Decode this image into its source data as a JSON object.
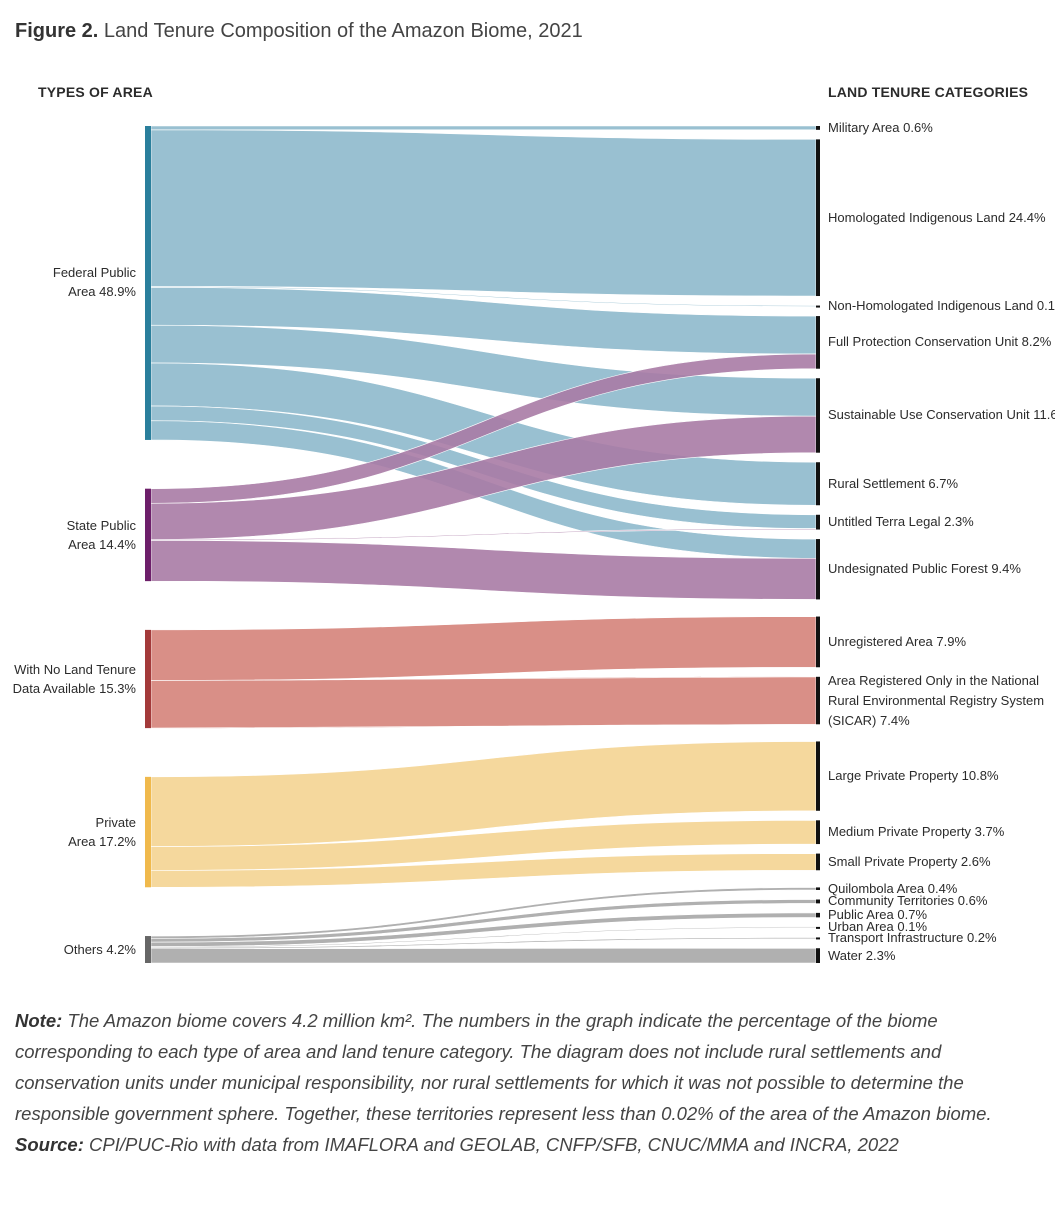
{
  "figure": {
    "number": "Figure 2.",
    "title": "Land Tenure Composition of the Amazon Biome, 2021"
  },
  "headers": {
    "left": "TYPES OF AREA",
    "right": "LAND TENURE CATEGORIES"
  },
  "chart_data": {
    "type": "sankey",
    "units": "%",
    "sources": [
      {
        "id": "federal",
        "lines": [
          "Federal Public",
          "Area 48.9%"
        ],
        "value": 48.9,
        "color": "#2a7f9c"
      },
      {
        "id": "state",
        "lines": [
          "State Public",
          "Area 14.4%"
        ],
        "value": 14.4,
        "color": "#6d1f6a"
      },
      {
        "id": "nodata",
        "lines": [
          "With No Land Tenure",
          "Data Available 15.3%"
        ],
        "value": 15.3,
        "color": "#a33a3a"
      },
      {
        "id": "private",
        "lines": [
          "Private",
          "Area 17.2%"
        ],
        "value": 17.2,
        "color": "#f0b94c"
      },
      {
        "id": "others",
        "lines": [
          "Others 4.2%"
        ],
        "value": 4.2,
        "color": "#666666"
      }
    ],
    "targets": [
      {
        "id": "military",
        "lines": [
          "Military Area 0.6%"
        ],
        "value": 0.6
      },
      {
        "id": "homologated",
        "lines": [
          "Homologated Indigenous Land 24.4%"
        ],
        "value": 24.4
      },
      {
        "id": "nonhomologated",
        "lines": [
          "Non-Homologated Indigenous Land 0.1%"
        ],
        "value": 0.1
      },
      {
        "id": "fullprotection",
        "lines": [
          "Full Protection Conservation Unit 8.2%"
        ],
        "value": 8.2
      },
      {
        "id": "sustainable",
        "lines": [
          "Sustainable Use Conservation Unit 11.6%"
        ],
        "value": 11.6
      },
      {
        "id": "rural",
        "lines": [
          "Rural Settlement 6.7%"
        ],
        "value": 6.7
      },
      {
        "id": "terralegal",
        "lines": [
          "Untitled Terra Legal 2.3%"
        ],
        "value": 2.3
      },
      {
        "id": "forest",
        "lines": [
          "Undesignated Public Forest 9.4%"
        ],
        "value": 9.4
      },
      {
        "id": "unregistered",
        "lines": [
          "Unregistered Area 7.9%"
        ],
        "value": 7.9
      },
      {
        "id": "sicar",
        "lines": [
          "Area Registered Only in the National",
          "Rural Environmental Registry System",
          "(SICAR) 7.4%"
        ],
        "value": 7.4
      },
      {
        "id": "large",
        "lines": [
          "Large Private Property 10.8%"
        ],
        "value": 10.8
      },
      {
        "id": "medium",
        "lines": [
          "Medium Private Property 3.7%"
        ],
        "value": 3.7
      },
      {
        "id": "small",
        "lines": [
          "Small Private Property 2.6%"
        ],
        "value": 2.6
      },
      {
        "id": "quilombola",
        "lines": [
          "Quilombola Area 0.4%"
        ],
        "value": 0.4
      },
      {
        "id": "community",
        "lines": [
          "Community Territories 0.6%"
        ],
        "value": 0.6
      },
      {
        "id": "publicarea",
        "lines": [
          "Public Area 0.7%"
        ],
        "value": 0.7
      },
      {
        "id": "urban",
        "lines": [
          "Urban Area 0.1%"
        ],
        "value": 0.1
      },
      {
        "id": "transport",
        "lines": [
          "Transport Infrastructure 0.2%"
        ],
        "value": 0.2
      },
      {
        "id": "water",
        "lines": [
          "Water 2.3%"
        ],
        "value": 2.3
      }
    ],
    "flows": [
      {
        "source": "federal",
        "target": "military",
        "value": 0.6
      },
      {
        "source": "federal",
        "target": "homologated",
        "value": 24.4
      },
      {
        "source": "federal",
        "target": "nonhomologated",
        "value": 0.1
      },
      {
        "source": "federal",
        "target": "fullprotection",
        "value": 5.9
      },
      {
        "source": "federal",
        "target": "sustainable",
        "value": 5.9
      },
      {
        "source": "federal",
        "target": "rural",
        "value": 6.7
      },
      {
        "source": "federal",
        "target": "terralegal",
        "value": 2.3
      },
      {
        "source": "federal",
        "target": "forest",
        "value": 3.0
      },
      {
        "source": "state",
        "target": "fullprotection",
        "value": 2.3
      },
      {
        "source": "state",
        "target": "sustainable",
        "value": 5.7
      },
      {
        "source": "state",
        "target": "terralegal",
        "value": 0.05
      },
      {
        "source": "state",
        "target": "forest",
        "value": 6.4
      },
      {
        "source": "nodata",
        "target": "unregistered",
        "value": 7.9
      },
      {
        "source": "nodata",
        "target": "sicar",
        "value": 7.4
      },
      {
        "source": "private",
        "target": "large",
        "value": 10.8
      },
      {
        "source": "private",
        "target": "medium",
        "value": 3.7
      },
      {
        "source": "private",
        "target": "small",
        "value": 2.6
      },
      {
        "source": "others",
        "target": "quilombola",
        "value": 0.4
      },
      {
        "source": "others",
        "target": "community",
        "value": 0.6
      },
      {
        "source": "others",
        "target": "publicarea",
        "value": 0.7
      },
      {
        "source": "others",
        "target": "urban",
        "value": 0.1
      },
      {
        "source": "others",
        "target": "transport",
        "value": 0.2
      },
      {
        "source": "others",
        "target": "water",
        "value": 2.3
      }
    ],
    "flow_colors": {
      "federal": "#99c0d1",
      "state": "#a97ba5",
      "nodata": "#d98f87",
      "private": "#f5d89d",
      "others": "#b0b0b0"
    },
    "target_bar_color": "#111111"
  },
  "note": {
    "label": "Note:",
    "text": " The Amazon biome covers 4.2 million km². The numbers in the graph indicate the percentage of the biome corresponding to each type of area and land tenure category. The diagram does not include rural settlements and conservation units under municipal responsibility, nor rural settlements for which it was not possible to determine the responsible government sphere. Together, these territories represent less than 0.02% of the area of the Amazon biome."
  },
  "source": {
    "label": "Source:",
    "text": " CPI/PUC-Rio with data from IMAFLORA and GEOLAB, CNFP/SFB, CNUC/MMA and INCRA, 2022"
  }
}
